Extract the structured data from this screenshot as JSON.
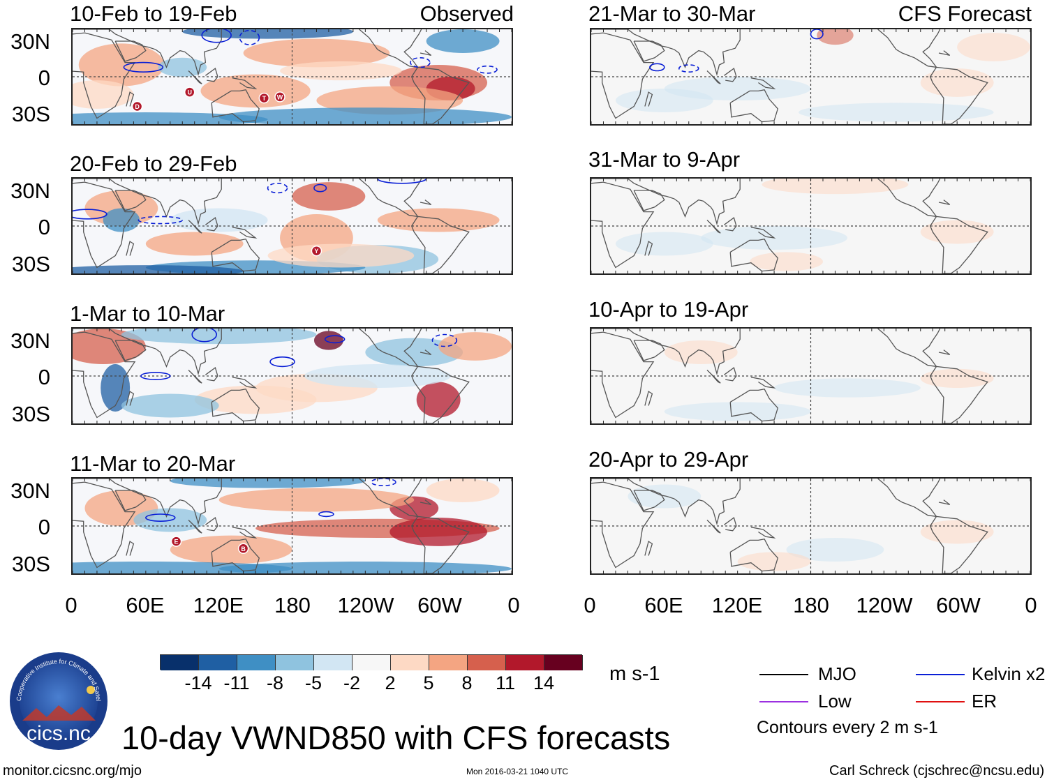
{
  "figure": {
    "title": "10-day VWND850 with CFS forecasts",
    "variable": "VWND850",
    "units": "m s-1",
    "left_header": "Observed",
    "right_header": "CFS Forecast",
    "url": "monitor.cicsnc.org/mjo",
    "timestamp": "Mon 2016-03-21 1040 UTC",
    "credit": "Carl Schreck (cjschrec@ncsu.edu)",
    "logo_text": "cics.nc",
    "logo_ring": "Cooperative Institute for Climate and Satellites"
  },
  "observed_panels": [
    {
      "period": "10-Feb to 19-Feb"
    },
    {
      "period": "20-Feb to 29-Feb"
    },
    {
      "period": "1-Mar to 10-Mar"
    },
    {
      "period": "11-Mar to 20-Mar"
    }
  ],
  "forecast_panels": [
    {
      "period": "21-Mar to 30-Mar"
    },
    {
      "period": "31-Mar to 9-Apr"
    },
    {
      "period": "10-Apr to 19-Apr"
    },
    {
      "period": "20-Apr to 29-Apr"
    }
  ],
  "axes": {
    "lat_ticks": [
      "30N",
      "0",
      "30S"
    ],
    "lon_ticks": [
      "0",
      "60E",
      "120E",
      "180",
      "120W",
      "60W",
      "0"
    ]
  },
  "colorbar": {
    "ticks": [
      "-14",
      "-11",
      "-8",
      "-5",
      "-2",
      "2",
      "5",
      "8",
      "11",
      "14"
    ],
    "colors": [
      "#08306b",
      "#1f5fa3",
      "#3f8fc4",
      "#8fc3df",
      "#d2e6f3",
      "#f7f7f7",
      "#fdd9c4",
      "#f4a582",
      "#d6604d",
      "#b2182b",
      "#67001f"
    ]
  },
  "legend": {
    "items": [
      {
        "label": "MJO",
        "color": "#000000"
      },
      {
        "label": "Kelvin x2",
        "color": "#0a1fd6"
      },
      {
        "label": "Low",
        "color": "#9b30e0"
      },
      {
        "label": "ER",
        "color": "#e01010"
      }
    ],
    "note": "Contours every 2 m s-1"
  },
  "storms_observed": [
    {
      "panel": 0,
      "label": "U"
    },
    {
      "panel": 0,
      "label": "D"
    },
    {
      "panel": 0,
      "label": "T"
    },
    {
      "panel": 0,
      "label": "W"
    },
    {
      "panel": 1,
      "label": "Y"
    },
    {
      "panel": 3,
      "label": "E"
    },
    {
      "panel": 3,
      "label": "B"
    }
  ]
}
